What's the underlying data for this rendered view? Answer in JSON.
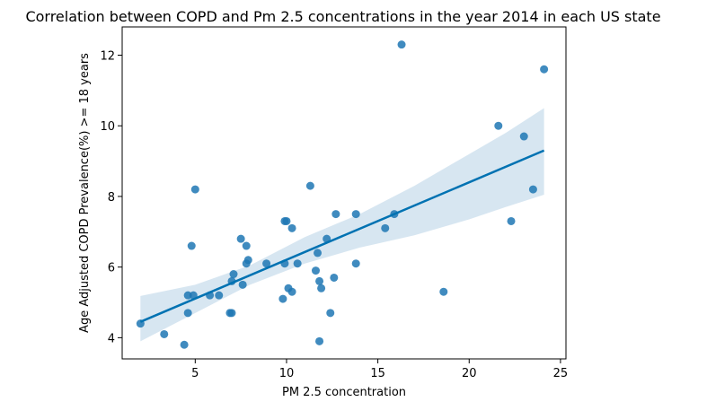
{
  "chart_data": {
    "type": "scatter",
    "title": "Correlation between COPD and Pm 2.5 concentrations in the year 2014 in each US state",
    "xlabel": "PM 2.5 concentration",
    "ylabel": "Age Adjusted COPD Prevalence(%) >= 18 years",
    "xlim": [
      1.0,
      25.3
    ],
    "ylim": [
      3.4,
      12.8
    ],
    "xticks": [
      5,
      10,
      15,
      20,
      25
    ],
    "yticks": [
      4,
      6,
      8,
      10,
      12
    ],
    "grid": false,
    "colors": {
      "points": "#1f77b4",
      "line": "#0072b2",
      "band": "#a6c8e0"
    },
    "regression": {
      "x": [
        2.0,
        24.1
      ],
      "y": [
        4.45,
        9.3
      ]
    },
    "confidence_band": {
      "x": [
        2.0,
        5.0,
        8.0,
        11.0,
        14.0,
        17.0,
        20.0,
        22.0,
        24.1
      ],
      "upper": [
        5.18,
        5.5,
        6.05,
        6.85,
        7.5,
        8.3,
        9.2,
        9.8,
        10.5
      ],
      "lower": [
        3.9,
        4.7,
        5.5,
        6.1,
        6.55,
        6.9,
        7.35,
        7.7,
        8.05
      ]
    },
    "points": [
      [
        2.0,
        4.4
      ],
      [
        3.3,
        4.1
      ],
      [
        4.4,
        3.8
      ],
      [
        4.6,
        4.7
      ],
      [
        4.6,
        5.2
      ],
      [
        4.9,
        5.2
      ],
      [
        4.8,
        6.6
      ],
      [
        5.0,
        8.2
      ],
      [
        5.8,
        5.2
      ],
      [
        6.3,
        5.2
      ],
      [
        6.9,
        4.7
      ],
      [
        7.0,
        4.7
      ],
      [
        7.0,
        5.6
      ],
      [
        7.1,
        5.8
      ],
      [
        7.6,
        5.5
      ],
      [
        7.5,
        6.8
      ],
      [
        7.8,
        6.6
      ],
      [
        7.8,
        6.1
      ],
      [
        7.9,
        6.2
      ],
      [
        8.9,
        6.1
      ],
      [
        9.8,
        5.1
      ],
      [
        9.9,
        6.1
      ],
      [
        9.9,
        7.3
      ],
      [
        10.0,
        7.3
      ],
      [
        10.1,
        5.4
      ],
      [
        10.3,
        5.3
      ],
      [
        10.3,
        7.1
      ],
      [
        10.6,
        6.1
      ],
      [
        11.3,
        8.3
      ],
      [
        11.6,
        5.9
      ],
      [
        11.7,
        6.4
      ],
      [
        11.8,
        5.6
      ],
      [
        11.9,
        5.4
      ],
      [
        11.8,
        3.9
      ],
      [
        12.2,
        6.8
      ],
      [
        12.4,
        4.7
      ],
      [
        12.6,
        5.7
      ],
      [
        12.7,
        7.5
      ],
      [
        13.8,
        6.1
      ],
      [
        13.8,
        7.5
      ],
      [
        15.4,
        7.1
      ],
      [
        15.9,
        7.5
      ],
      [
        16.3,
        12.3
      ],
      [
        18.6,
        5.3
      ],
      [
        21.6,
        10.0
      ],
      [
        22.3,
        7.3
      ],
      [
        23.0,
        9.7
      ],
      [
        23.5,
        8.2
      ],
      [
        24.1,
        11.6
      ]
    ]
  }
}
